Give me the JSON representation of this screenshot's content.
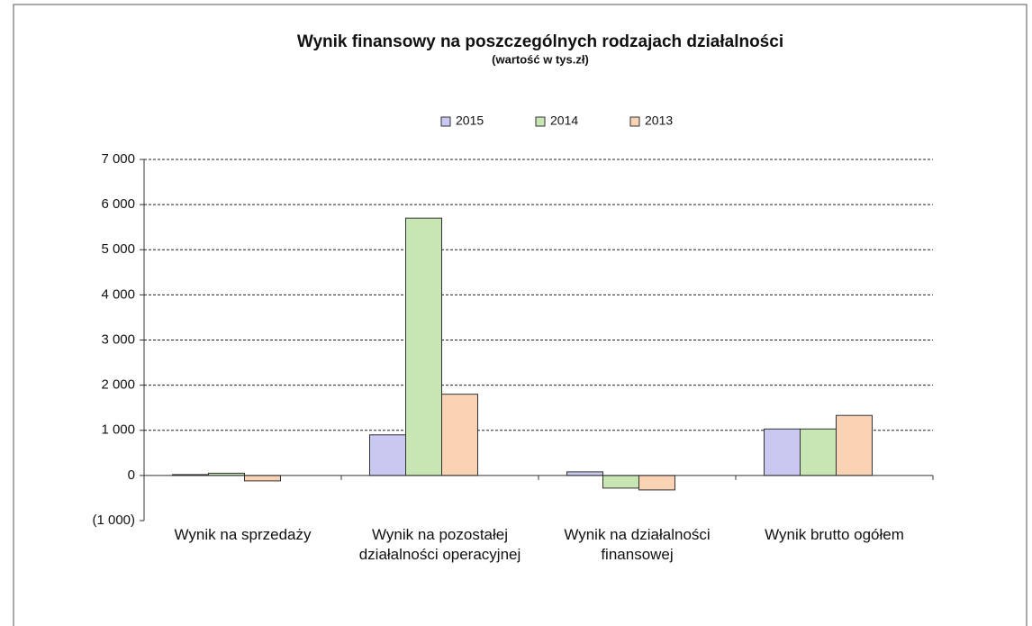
{
  "chart_data": {
    "type": "bar",
    "title": "Wynik finansowy na poszczególnych rodzajach działalności",
    "subtitle": "(wartość w tys.zł)",
    "categories": [
      "Wynik na sprzedaży",
      "Wynik na pozostałej działalności operacyjnej",
      "Wynik na działalności finansowej",
      "Wynik brutto ogółem"
    ],
    "series": [
      {
        "name": "2015",
        "color": "#c8c8f0",
        "values": [
          20,
          900,
          80,
          1030
        ]
      },
      {
        "name": "2014",
        "color": "#c8e6b4",
        "values": [
          50,
          5700,
          -280,
          1030
        ]
      },
      {
        "name": "2013",
        "color": "#fad2b4",
        "values": [
          -120,
          1800,
          -320,
          1330
        ]
      }
    ],
    "ylim": [
      -1000,
      7000
    ],
    "yticks": [
      {
        "value": -1000,
        "label": "(1 000)"
      },
      0,
      {
        "value": 1000,
        "label": "1 000"
      },
      {
        "value": 2000,
        "label": "2 000"
      },
      {
        "value": 3000,
        "label": "3 000"
      },
      {
        "value": 4000,
        "label": "4 000"
      },
      {
        "value": 5000,
        "label": "5 000"
      },
      {
        "value": 6000,
        "label": "6 000"
      },
      {
        "value": 7000,
        "label": "7 000"
      }
    ],
    "grid": true,
    "legend": "top"
  }
}
